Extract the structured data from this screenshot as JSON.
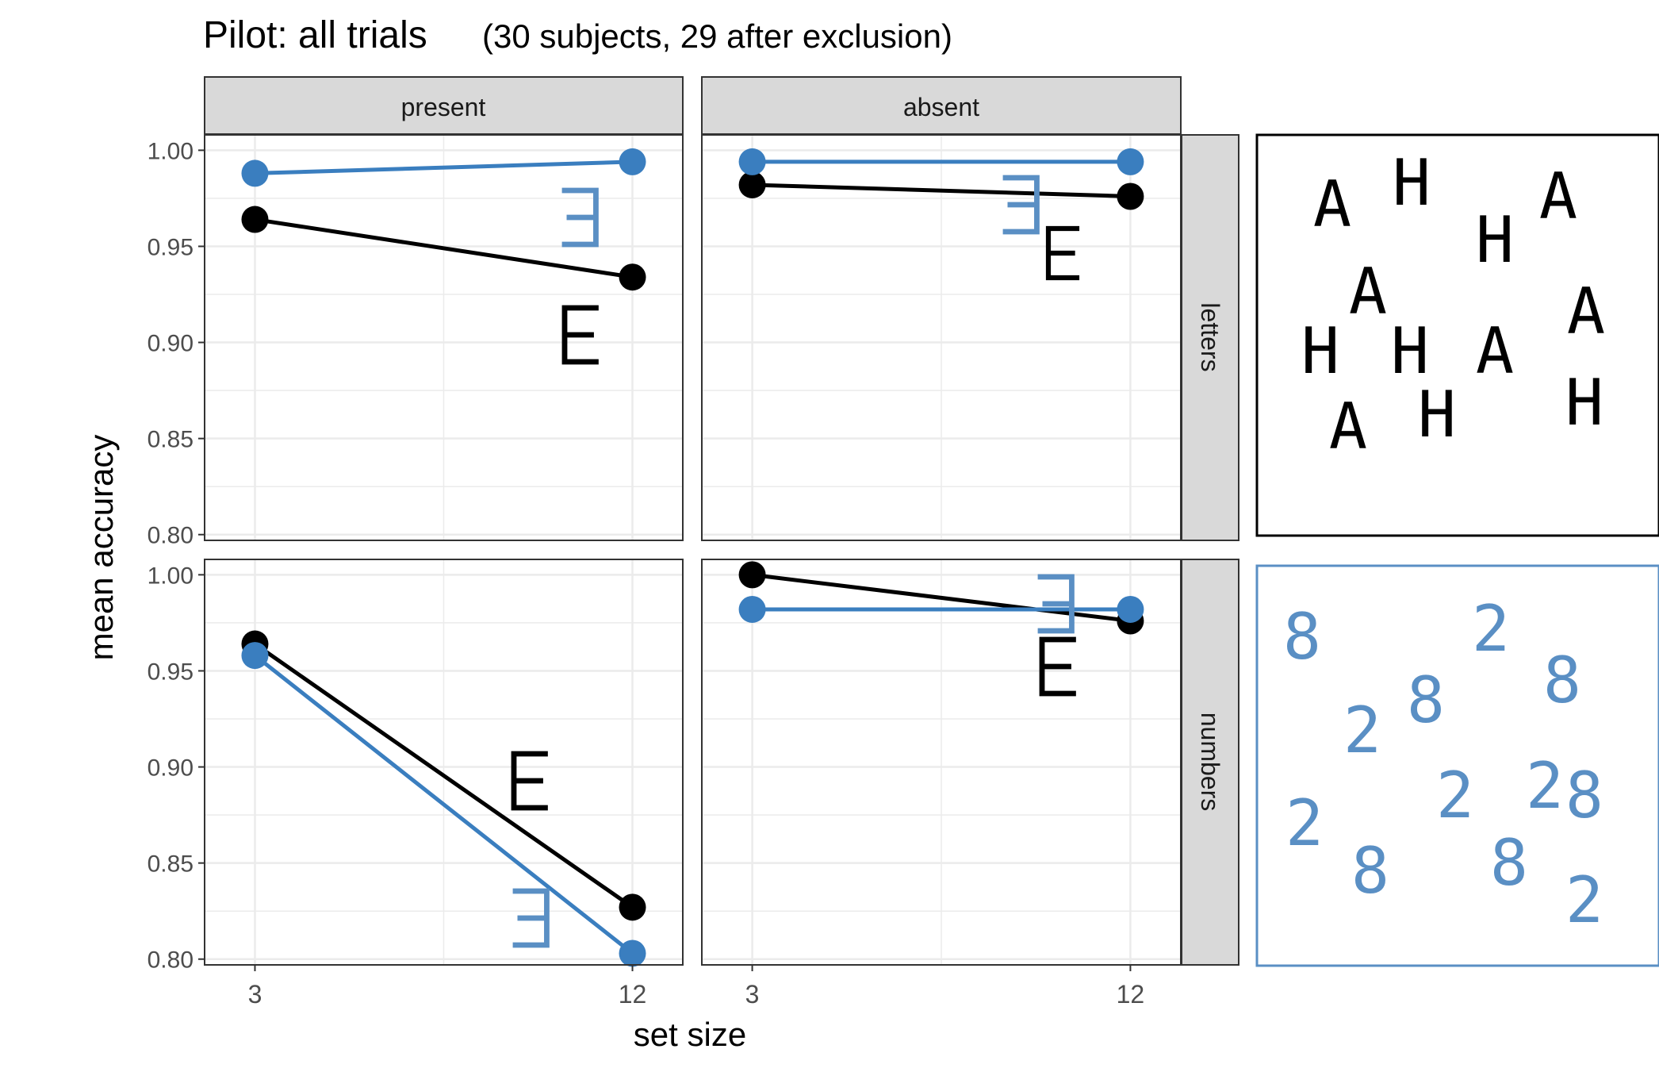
{
  "title": {
    "main": "Pilot: all trials",
    "sub": "(30 subjects, 29 after exclusion)"
  },
  "axes": {
    "xlabel": "set size",
    "ylabel": "mean accuracy"
  },
  "colors": {
    "black_series": "#000000",
    "blue_series": "#3A7EBF",
    "strip_fill": "#D9D9D9",
    "grid": "#EBEBEB",
    "stimulus_blue": "#5A8FC4"
  },
  "chart_data": {
    "type": "line",
    "title": "Pilot: all trials",
    "subtitle": "(30 subjects, 29 after exclusion)",
    "xlabel": "set size",
    "ylabel": "mean accuracy",
    "x_ticks": [
      "3",
      "12"
    ],
    "y_ticks": [
      "0.80",
      "0.85",
      "0.90",
      "0.95",
      "1.00"
    ],
    "ylim": [
      0.797,
      1.008
    ],
    "grid": true,
    "col_facets": [
      "present",
      "absent"
    ],
    "row_facets": [
      "letters",
      "numbers"
    ],
    "series_glyphs": {
      "black": "E",
      "blue": "Ǝ"
    },
    "panels": [
      {
        "col": "present",
        "row": "letters",
        "series": [
          {
            "color": "black",
            "x": [
              3,
              12
            ],
            "y": [
              0.964,
              0.934
            ]
          },
          {
            "color": "blue",
            "x": [
              3,
              12
            ],
            "y": [
              0.988,
              0.994
            ]
          }
        ]
      },
      {
        "col": "absent",
        "row": "letters",
        "series": [
          {
            "color": "black",
            "x": [
              3,
              12
            ],
            "y": [
              0.982,
              0.976
            ]
          },
          {
            "color": "blue",
            "x": [
              3,
              12
            ],
            "y": [
              0.994,
              0.994
            ]
          }
        ]
      },
      {
        "col": "present",
        "row": "numbers",
        "series": [
          {
            "color": "black",
            "x": [
              3,
              12
            ],
            "y": [
              0.964,
              0.827
            ]
          },
          {
            "color": "blue",
            "x": [
              3,
              12
            ],
            "y": [
              0.958,
              0.803
            ]
          }
        ]
      },
      {
        "col": "absent",
        "row": "numbers",
        "series": [
          {
            "color": "black",
            "x": [
              3,
              12
            ],
            "y": [
              1.0,
              0.976
            ]
          },
          {
            "color": "blue",
            "x": [
              3,
              12
            ],
            "y": [
              0.982,
              0.982
            ]
          }
        ]
      }
    ]
  },
  "stimuli": {
    "letters": [
      "A",
      "H",
      "H",
      "A",
      "A",
      "A",
      "H",
      "H",
      "A",
      "A",
      "H",
      "H"
    ],
    "numbers": [
      "8",
      "2",
      "8",
      "8",
      "2",
      "2",
      "2",
      "8",
      "2",
      "8",
      "8",
      "2"
    ]
  }
}
